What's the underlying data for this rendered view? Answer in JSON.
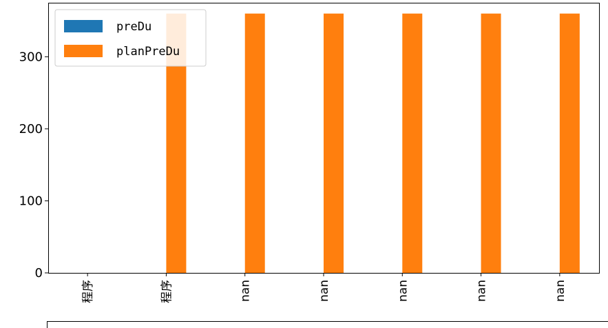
{
  "chart_data": {
    "type": "bar",
    "categories": [
      "程序",
      "程序",
      "nan",
      "nan",
      "nan",
      "nan",
      "nan"
    ],
    "series": [
      {
        "name": "preDu",
        "values": [
          0,
          0,
          0,
          0,
          0,
          0,
          0
        ],
        "color": "#1f77b4"
      },
      {
        "name": "planPreDu",
        "values": [
          0,
          360,
          360,
          360,
          360,
          360,
          360
        ],
        "color": "#ff7f0e"
      }
    ],
    "ylim": [
      0,
      375
    ],
    "yticks": [
      0,
      100,
      200,
      300
    ],
    "legend_position": "top-left",
    "grid": false
  }
}
